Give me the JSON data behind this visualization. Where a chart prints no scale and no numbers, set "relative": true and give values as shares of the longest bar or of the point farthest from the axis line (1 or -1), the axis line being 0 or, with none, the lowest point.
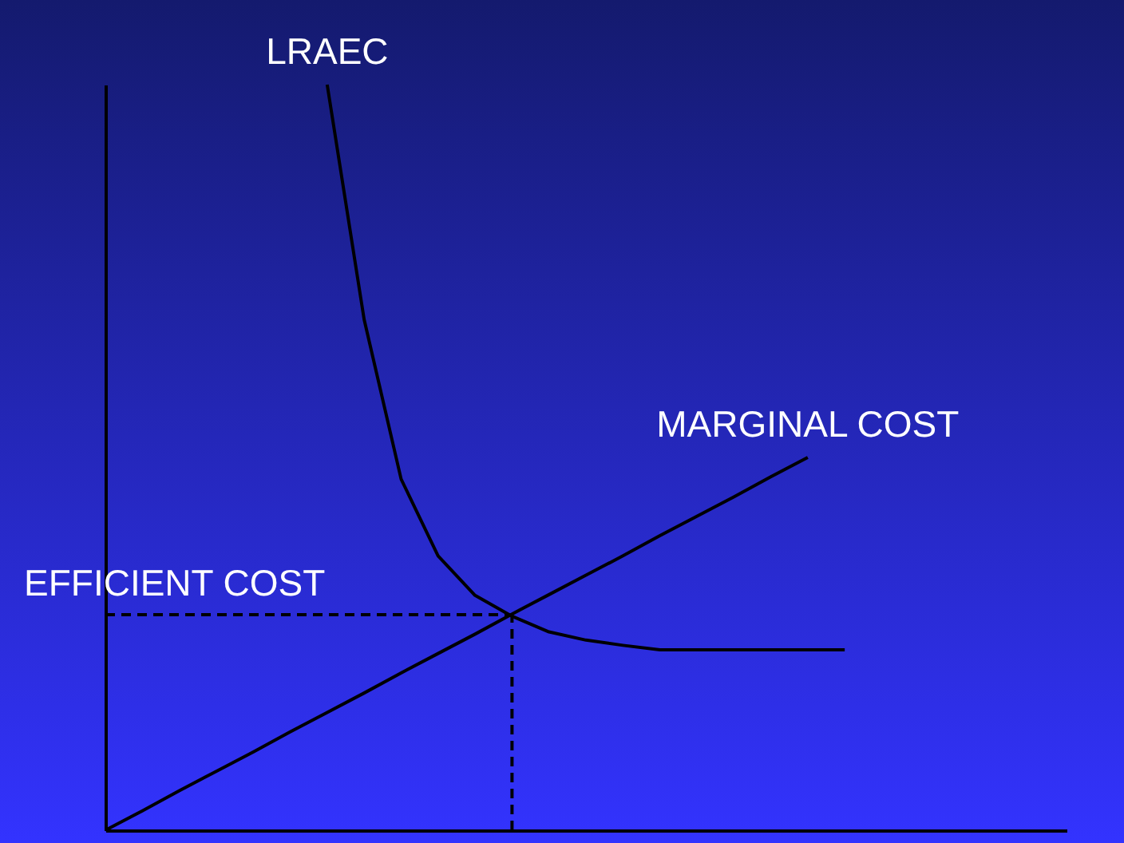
{
  "chart_data": {
    "type": "line",
    "relative": true,
    "line_style": "solid",
    "categories": [
      null,
      null,
      null,
      null,
      null,
      null,
      null,
      null,
      null,
      null,
      null,
      null,
      null,
      null,
      null,
      null,
      null,
      null,
      null,
      null,
      null,
      null,
      null,
      null,
      null,
      null,
      null
    ],
    "series": [
      {
        "name": "LRAEC",
        "color": "#000000",
        "values": [
          null,
          null,
          null,
          null,
          null,
          null,
          1.0,
          0.685,
          0.471,
          0.368,
          0.315,
          0.287,
          0.266,
          0.255,
          0.248,
          0.242,
          0.242,
          0.242,
          0.242,
          0.242,
          0.242,
          null,
          null,
          null,
          null,
          null,
          null
        ]
      },
      {
        "name": "MARGINAL COST",
        "color": "#000000",
        "values": [
          0,
          0.026,
          0.053,
          0.079,
          0.105,
          0.132,
          0.158,
          0.184,
          0.211,
          0.237,
          0.263,
          0.29,
          0.316,
          0.342,
          0.368,
          0.395,
          0.421,
          0.447,
          0.474,
          0.5,
          null,
          null,
          null,
          null,
          null,
          null,
          null
        ]
      }
    ],
    "ref_lines": [
      {
        "axis": "y",
        "value": 0.289,
        "label": "EFFICIENT COST",
        "line_style": "dashed",
        "color": "#000000"
      }
    ]
  }
}
